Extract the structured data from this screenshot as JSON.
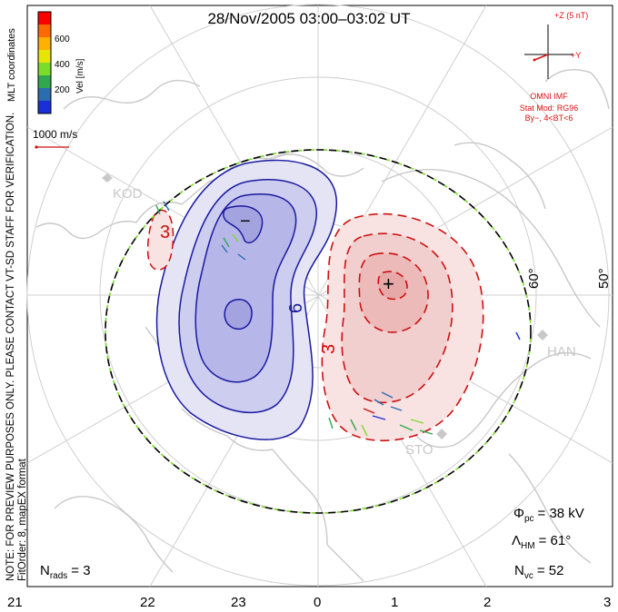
{
  "title": "28/Nov/2005 03:00–03:02 UT",
  "colorbar": {
    "ticks": [
      "600",
      "400",
      "200"
    ],
    "label": "Vel [m/s]",
    "colors": [
      "#ff0000",
      "#ff6a00",
      "#ffb000",
      "#e6e600",
      "#7cdc2a",
      "#2fa84f",
      "#2a6db0",
      "#1a2fd8"
    ]
  },
  "coordinates_label": "MLT coordinates",
  "side_note_line1": "NOTE: FOR PREVIEW PURPOSES ONLY. PLEASE CONTACT VT-SD STAFF FOR VERIFICATION.",
  "side_note_line2": "FitOrder: 8, mapEX format",
  "scale_vector_label": "1000 m/s",
  "imf": {
    "z_label": "+Z (5 nT)",
    "y_label": "+Y",
    "source_label": "OMNI IMF",
    "model_line1": "Stat Mod: RG96",
    "model_line2": "By−, 4<BT<6"
  },
  "stations": [
    "KOD",
    "HAN",
    "STO"
  ],
  "contour_labels": {
    "neg_small": "3",
    "neg_big": "6",
    "pos": "3"
  },
  "center_markers": {
    "min": "−",
    "max": "+"
  },
  "latitude_labels": [
    "60°",
    "50°"
  ],
  "mlt_axis": [
    "21",
    "22",
    "23",
    "0",
    "1",
    "2",
    "3"
  ],
  "stats": {
    "phi_symbol": "Φ",
    "phi_sub": "pc",
    "phi_value": "= 38 kV",
    "lambda_symbol": "Λ",
    "lambda_sub": "HM",
    "lambda_value": "= 61°",
    "nvc_symbol": "N",
    "nvc_sub": "vc",
    "nvc_value": "= 52"
  },
  "nrads": {
    "symbol": "N",
    "sub": "rads",
    "value": "= 3"
  },
  "colors": {
    "negative_line": "#1a1aa0",
    "negative_fill_1": "#e4e4f4",
    "negative_fill_2": "#cdcdef",
    "negative_fill_3": "#b6b6e8",
    "positive_line": "#cc1111",
    "positive_fill_1": "#f8e2e2",
    "positive_fill_2": "#f2cfcf",
    "imf_red": "#dd1111",
    "coast": "#c8c8c8",
    "grid": "#cfcfcf",
    "hmb_dash": "#7cdc2a"
  }
}
